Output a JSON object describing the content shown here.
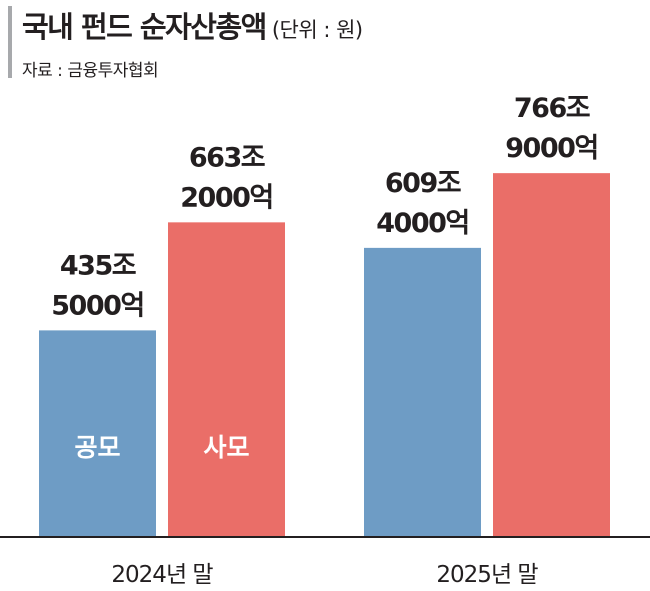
{
  "header": {
    "title": "국내 펀드 순자산총액",
    "unit": "(단위 : 원)",
    "source": "자료 : 금융투자협회"
  },
  "colors": {
    "public_fund": "#6e9cc5",
    "private_fund": "#ea6e68",
    "axis": "#231f20"
  },
  "chart_data": {
    "type": "bar",
    "title": "국내 펀드 순자산총액",
    "unit": "(단위 : 원)",
    "categories": [
      "2024년 말",
      "2025년 말"
    ],
    "series": [
      {
        "name": "공모",
        "values": [
          435.5,
          609.4
        ],
        "labels": [
          [
            "435조",
            "5000억"
          ],
          [
            "609조",
            "4000억"
          ]
        ],
        "color": "#6e9cc5"
      },
      {
        "name": "사모",
        "values": [
          663.2,
          766.9
        ],
        "labels": [
          [
            "663조",
            "2000억"
          ],
          [
            "766조",
            "9000억"
          ]
        ],
        "color": "#ea6e68"
      }
    ],
    "in_bar_labels": [
      "공모",
      "사모"
    ],
    "ylim": [
      0,
      900
    ],
    "xlabel": "",
    "ylabel": "",
    "grid": false,
    "legend": "none"
  }
}
